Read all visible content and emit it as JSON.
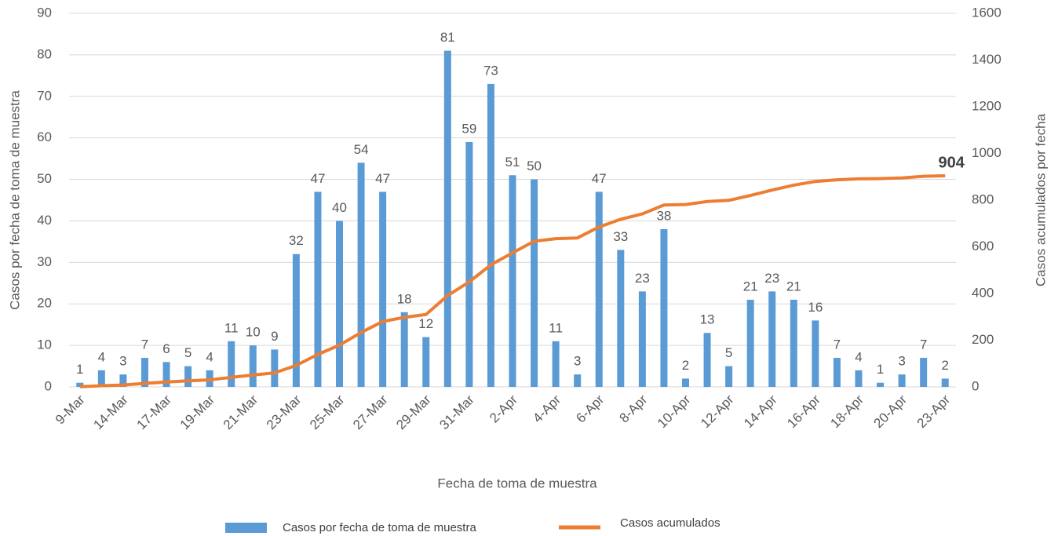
{
  "chart_data": {
    "type": "bar_line",
    "categories": [
      "9-Mar",
      null,
      "14-Mar",
      null,
      "17-Mar",
      null,
      "19-Mar",
      null,
      "21-Mar",
      null,
      "23-Mar",
      null,
      "25-Mar",
      null,
      "27-Mar",
      null,
      "29-Mar",
      null,
      "31-Mar",
      null,
      "2-Apr",
      null,
      "4-Apr",
      null,
      "6-Apr",
      null,
      "8-Apr",
      null,
      "10-Apr",
      null,
      "12-Apr",
      null,
      "14-Apr",
      null,
      "16-Apr",
      null,
      "18-Apr",
      null,
      "20-Apr",
      null,
      "23-Apr"
    ],
    "series": [
      {
        "name": "Casos por fecha de toma de muestra",
        "color": "#5b9bd5",
        "type": "bar",
        "data_labels": "all",
        "values": [
          1,
          4,
          3,
          7,
          6,
          5,
          4,
          11,
          10,
          9,
          32,
          47,
          40,
          54,
          47,
          18,
          12,
          81,
          59,
          73,
          51,
          50,
          11,
          3,
          47,
          33,
          23,
          38,
          2,
          13,
          5,
          21,
          23,
          21,
          16,
          7,
          4,
          1,
          3,
          7,
          2
        ]
      },
      {
        "name": "Casos acumulados",
        "color": "#ed7d31",
        "type": "line",
        "axis": "y2",
        "data_labels": "last",
        "values": [
          1,
          5,
          8,
          15,
          21,
          26,
          30,
          41,
          51,
          60,
          92,
          139,
          179,
          233,
          280,
          298,
          310,
          391,
          450,
          523,
          574,
          624,
          635,
          638,
          685,
          718,
          741,
          779,
          781,
          794,
          799,
          820,
          843,
          864,
          880,
          887,
          891,
          892,
          895,
          902,
          904
        ]
      }
    ],
    "x_label": "Fecha de toma de muestra",
    "y_label": "Casos por fecha de toma de muestra",
    "y2_label": "Casos acumulados  por fecha",
    "ylim": [
      0,
      90
    ],
    "yticks": [
      0,
      10,
      20,
      30,
      40,
      50,
      60,
      70,
      80,
      90
    ],
    "y2lim": [
      0,
      1600
    ],
    "y2ticks": [
      0,
      200,
      400,
      600,
      800,
      1000,
      1200,
      1400,
      1600
    ],
    "grid": true,
    "legend": "bottom"
  }
}
